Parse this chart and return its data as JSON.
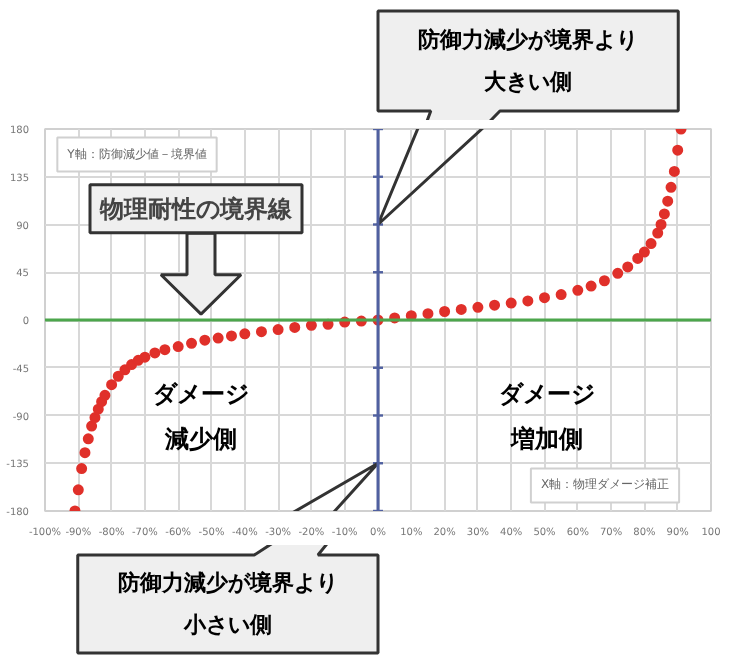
{
  "chart_data": {
    "type": "scatter",
    "x": [
      -91,
      -90,
      -89,
      -88,
      -87,
      -86,
      -85,
      -84,
      -83,
      -82,
      -80,
      -78,
      -76,
      -74,
      -72,
      -70,
      -67,
      -64,
      -60,
      -56,
      -52,
      -48,
      -44,
      -40,
      -35,
      -30,
      -25,
      -20,
      -15,
      -10,
      -5,
      0,
      5,
      10,
      15,
      20,
      25,
      30,
      35,
      40,
      45,
      50,
      55,
      60,
      64,
      68,
      72,
      75,
      78,
      80,
      82,
      84,
      85,
      86,
      87,
      88,
      89,
      90,
      91
    ],
    "series": [
      {
        "color": "#e0302a",
        "values": [
          -180,
          -160,
          -140,
          -125,
          -112,
          -100,
          -92,
          -84,
          -77,
          -71,
          -61,
          -53,
          -47,
          -42,
          -38,
          -35,
          -31,
          -28,
          -25,
          -22,
          -19,
          -17,
          -15,
          -13,
          -11,
          -9,
          -7,
          -5,
          -4,
          -2,
          -1,
          0,
          2,
          4,
          6,
          8,
          10,
          12,
          14,
          16,
          18,
          21,
          24,
          28,
          32,
          37,
          44,
          50,
          58,
          64,
          72,
          82,
          90,
          100,
          112,
          125,
          140,
          160,
          180
        ]
      }
    ],
    "xlim": [
      -100,
      100
    ],
    "ylim": [
      -180,
      180
    ],
    "xticks": [
      {
        "value": -100,
        "label": "-100%"
      },
      {
        "value": -90,
        "label": "-90%"
      },
      {
        "value": -80,
        "label": "-80%"
      },
      {
        "value": -70,
        "label": "-70%"
      },
      {
        "value": -60,
        "label": "-60%"
      },
      {
        "value": -50,
        "label": "-50%"
      },
      {
        "value": -40,
        "label": "-40%"
      },
      {
        "value": -30,
        "label": "-30%"
      },
      {
        "value": -20,
        "label": "-20%"
      },
      {
        "value": -10,
        "label": "-10%"
      },
      {
        "value": 0,
        "label": "0%"
      },
      {
        "value": 10,
        "label": "10%"
      },
      {
        "value": 20,
        "label": "20%"
      },
      {
        "value": 30,
        "label": "30%"
      },
      {
        "value": 40,
        "label": "40%"
      },
      {
        "value": 50,
        "label": "50%"
      },
      {
        "value": 60,
        "label": "60%"
      },
      {
        "value": 70,
        "label": "70%"
      },
      {
        "value": 80,
        "label": "80%"
      },
      {
        "value": 90,
        "label": "90%"
      },
      {
        "value": 100,
        "label": "100"
      }
    ],
    "yticks": [
      -180,
      -135,
      -90,
      -45,
      0,
      45,
      90,
      135,
      180
    ],
    "grid": true,
    "marker": "circle",
    "ref_lines": [
      {
        "axis": "y",
        "value": 0,
        "color": "#4ca64c"
      },
      {
        "axis": "x",
        "value": 0,
        "color": "#5060a0"
      }
    ],
    "annotations": [
      "防御力減少が境界より大きい側",
      "防御力減少が境界より小さい側",
      "物理耐性の境界線",
      "Y軸：防御減少値－境界値",
      "X軸：物理ダメージ補正",
      "ダメージ減少側",
      "ダメージ増加側"
    ]
  }
}
